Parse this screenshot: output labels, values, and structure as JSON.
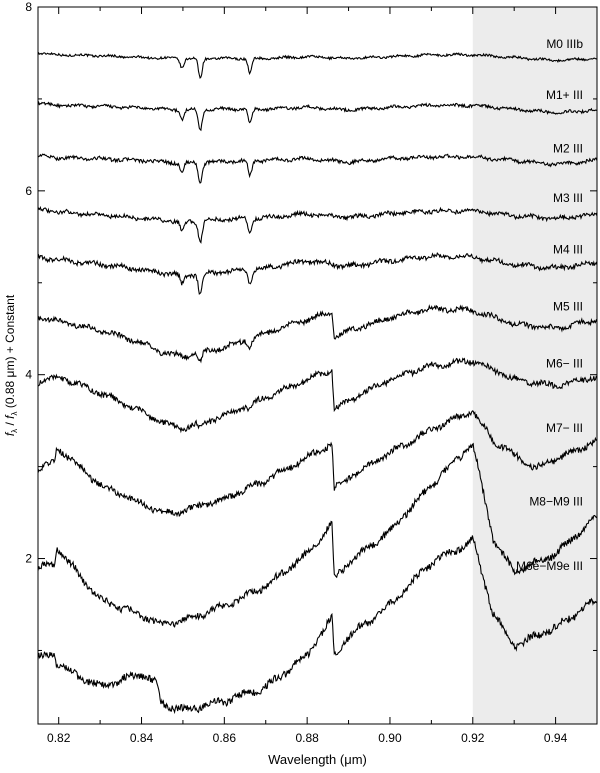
{
  "chart_data": {
    "type": "line",
    "xlabel": "Wavelength (μm)",
    "ylabel": {
      "f1": "f",
      "sub1": "λ",
      "slash": " / ",
      "f2": "f",
      "sub2": "λ",
      "rest": " (0.88 μm) + Constant"
    },
    "xlim": [
      0.815,
      0.95
    ],
    "ylim": [
      0.2,
      8.0
    ],
    "x_ticks": [
      "0.82",
      "0.84",
      "0.86",
      "0.88",
      "0.90",
      "0.92",
      "0.94"
    ],
    "x_tick_values": [
      0.82,
      0.84,
      0.86,
      0.88,
      0.9,
      0.92,
      0.94
    ],
    "y_ticks": [
      "2",
      "4",
      "6",
      "8"
    ],
    "y_tick_values": [
      2,
      4,
      6,
      8
    ],
    "shaded_region": {
      "x": [
        0.92,
        0.95
      ],
      "color": "#ececec"
    },
    "line_color": "#000000",
    "series": [
      {
        "name": "M0 IIIb",
        "label_y": 7.6,
        "x": [
          0.815,
          0.82,
          0.83,
          0.84,
          0.85,
          0.86,
          0.87,
          0.88,
          0.89,
          0.9,
          0.91,
          0.92,
          0.93,
          0.94,
          0.95
        ],
        "y": [
          7.5,
          7.48,
          7.47,
          7.45,
          7.44,
          7.44,
          7.44,
          7.46,
          7.44,
          7.46,
          7.48,
          7.48,
          7.45,
          7.42,
          7.44
        ],
        "lines": [
          [
            0.8498,
            0.1
          ],
          [
            0.8542,
            0.22
          ],
          [
            0.8662,
            0.16
          ]
        ]
      },
      {
        "name": "M1+ III",
        "label_y": 7.04,
        "x": [
          0.815,
          0.82,
          0.83,
          0.84,
          0.85,
          0.86,
          0.87,
          0.88,
          0.89,
          0.9,
          0.91,
          0.92,
          0.93,
          0.94,
          0.95
        ],
        "y": [
          6.95,
          6.93,
          6.92,
          6.9,
          6.88,
          6.89,
          6.89,
          6.91,
          6.88,
          6.91,
          6.93,
          6.93,
          6.89,
          6.85,
          6.88
        ],
        "lines": [
          [
            0.8498,
            0.1
          ],
          [
            0.8542,
            0.22
          ],
          [
            0.8662,
            0.16
          ]
        ]
      },
      {
        "name": "M2 III",
        "label_y": 6.46,
        "x": [
          0.815,
          0.82,
          0.83,
          0.84,
          0.85,
          0.86,
          0.87,
          0.88,
          0.89,
          0.9,
          0.91,
          0.92,
          0.93,
          0.94,
          0.95
        ],
        "y": [
          6.38,
          6.36,
          6.35,
          6.33,
          6.3,
          6.32,
          6.33,
          6.35,
          6.31,
          6.35,
          6.37,
          6.37,
          6.33,
          6.29,
          6.33
        ],
        "lines": [
          [
            0.8498,
            0.1
          ],
          [
            0.8542,
            0.22
          ],
          [
            0.8662,
            0.16
          ]
        ]
      },
      {
        "name": "M3 III",
        "label_y": 5.92,
        "x": [
          0.815,
          0.82,
          0.83,
          0.84,
          0.85,
          0.86,
          0.87,
          0.88,
          0.89,
          0.9,
          0.91,
          0.92,
          0.93,
          0.94,
          0.95
        ],
        "y": [
          5.8,
          5.77,
          5.74,
          5.7,
          5.66,
          5.69,
          5.71,
          5.75,
          5.71,
          5.75,
          5.78,
          5.78,
          5.73,
          5.7,
          5.74
        ],
        "lines": [
          [
            0.8498,
            0.1
          ],
          [
            0.8542,
            0.22
          ],
          [
            0.8662,
            0.16
          ]
        ]
      },
      {
        "name": "M4 III",
        "label_y": 5.36,
        "x": [
          0.815,
          0.82,
          0.83,
          0.84,
          0.85,
          0.86,
          0.87,
          0.88,
          0.89,
          0.9,
          0.91,
          0.92,
          0.93,
          0.94,
          0.95
        ],
        "y": [
          5.28,
          5.25,
          5.2,
          5.14,
          5.08,
          5.12,
          5.16,
          5.24,
          5.18,
          5.24,
          5.29,
          5.28,
          5.2,
          5.16,
          5.22
        ],
        "lines": [
          [
            0.8498,
            0.1
          ],
          [
            0.8542,
            0.22
          ],
          [
            0.8662,
            0.16
          ]
        ]
      },
      {
        "name": "M5 III",
        "label_y": 4.74,
        "x": [
          0.815,
          0.82,
          0.83,
          0.84,
          0.845,
          0.85,
          0.86,
          0.87,
          0.88,
          0.886,
          0.8865,
          0.89,
          0.9,
          0.91,
          0.92,
          0.93,
          0.94,
          0.95
        ],
        "y": [
          4.62,
          4.58,
          4.48,
          4.35,
          4.24,
          4.2,
          4.3,
          4.45,
          4.6,
          4.68,
          4.4,
          4.48,
          4.62,
          4.72,
          4.7,
          4.55,
          4.5,
          4.6
        ],
        "lines": [
          [
            0.8542,
            0.1
          ],
          [
            0.8662,
            0.1
          ]
        ]
      },
      {
        "name": "M6− III",
        "label_y": 4.12,
        "x": [
          0.815,
          0.82,
          0.83,
          0.84,
          0.845,
          0.85,
          0.86,
          0.87,
          0.88,
          0.886,
          0.8865,
          0.89,
          0.9,
          0.91,
          0.92,
          0.93,
          0.94,
          0.95
        ],
        "y": [
          3.92,
          3.98,
          3.8,
          3.6,
          3.48,
          3.42,
          3.55,
          3.75,
          3.95,
          4.05,
          3.62,
          3.72,
          3.95,
          4.1,
          4.15,
          3.95,
          3.88,
          3.98
        ],
        "lines": [
          [
            0.8542,
            0.06
          ],
          [
            0.8662,
            0.06
          ]
        ]
      },
      {
        "name": "M7− III",
        "label_y": 3.42,
        "x": [
          0.815,
          0.819,
          0.8195,
          0.83,
          0.84,
          0.845,
          0.85,
          0.86,
          0.87,
          0.88,
          0.886,
          0.8865,
          0.89,
          0.9,
          0.91,
          0.92,
          0.925,
          0.935,
          0.95
        ],
        "y": [
          2.98,
          3.05,
          3.22,
          2.8,
          2.6,
          2.5,
          2.52,
          2.65,
          2.85,
          3.1,
          3.25,
          2.75,
          2.88,
          3.15,
          3.4,
          3.6,
          3.28,
          2.98,
          3.28
        ],
        "lines": []
      },
      {
        "name": "M8−M9 III",
        "label_y": 2.62,
        "x": [
          0.815,
          0.819,
          0.8195,
          0.83,
          0.84,
          0.845,
          0.85,
          0.86,
          0.87,
          0.88,
          0.886,
          0.8865,
          0.89,
          0.9,
          0.91,
          0.92,
          0.925,
          0.93,
          0.94,
          0.95
        ],
        "y": [
          1.9,
          1.95,
          2.12,
          1.55,
          1.38,
          1.28,
          1.33,
          1.48,
          1.7,
          2.05,
          2.38,
          1.78,
          1.95,
          2.3,
          2.8,
          3.25,
          2.2,
          1.85,
          2.05,
          2.45
        ],
        "lines": []
      },
      {
        "name": "M6e−M9e III",
        "label_y": 1.92,
        "x": [
          0.815,
          0.819,
          0.8195,
          0.83,
          0.84,
          0.844,
          0.8445,
          0.85,
          0.86,
          0.87,
          0.88,
          0.886,
          0.8865,
          0.89,
          0.9,
          0.91,
          0.92,
          0.925,
          0.93,
          0.94,
          0.95
        ],
        "y": [
          0.92,
          0.98,
          0.85,
          0.6,
          0.75,
          0.62,
          0.42,
          0.35,
          0.45,
          0.6,
          0.95,
          1.35,
          0.95,
          1.15,
          1.5,
          1.95,
          2.2,
          1.4,
          1.05,
          1.25,
          1.55
        ],
        "lines": []
      }
    ]
  }
}
